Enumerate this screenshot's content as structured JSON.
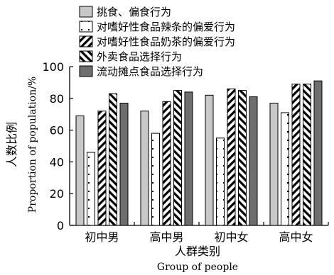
{
  "chart_data": {
    "type": "bar",
    "title": "",
    "categories": [
      "初中男",
      "高中男",
      "初中女",
      "高中女"
    ],
    "series": [
      {
        "name": "挑食、偏食行为",
        "pattern": "light-gray",
        "values": [
          69,
          72,
          82,
          77
        ]
      },
      {
        "name": "对嗜好性食品辣条的偏爱行为",
        "pattern": "sparse-dots",
        "values": [
          46,
          58,
          55,
          71
        ]
      },
      {
        "name": "对嗜好性食品奶茶的偏爱行为",
        "pattern": "forward-diagonal",
        "values": [
          72,
          78,
          86,
          89
        ]
      },
      {
        "name": "外卖食品选择行为",
        "pattern": "back-diagonal",
        "values": [
          83,
          85,
          85,
          89
        ]
      },
      {
        "name": "流动摊点食品选择行为",
        "pattern": "dark-gray",
        "values": [
          77,
          84,
          81,
          91
        ]
      }
    ],
    "ylabel_cn": "人数比例",
    "ylabel_en": "Proportion of population/%",
    "xlabel_cn": "人群类别",
    "xlabel_en": "Group of people",
    "ylim": [
      0,
      100
    ],
    "yticks": [
      "0",
      "20",
      "40",
      "60",
      "80",
      "100"
    ],
    "grid": false,
    "legend_position": "top"
  }
}
